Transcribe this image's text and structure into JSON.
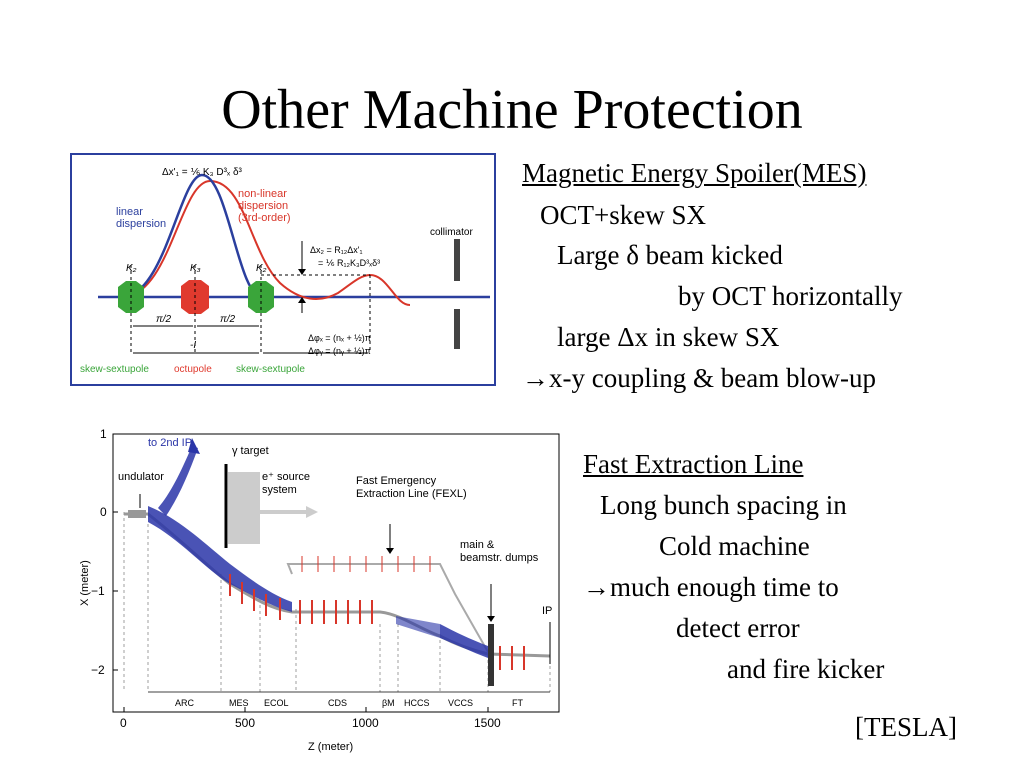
{
  "title": "Other Machine Protection",
  "mes": {
    "heading": "Magnetic Energy Spoiler(MES)",
    "lines": [
      "OCT+skew SX",
      "Large δ beam kicked",
      "by OCT horizontally",
      "large Δx in skew SX",
      "→x-y coupling & beam blow-up"
    ]
  },
  "fel": {
    "heading": "Fast Extraction Line",
    "lines": [
      "Long bunch spacing in",
      "Cold machine",
      "→much enough time to",
      "detect error",
      "and fire kicker"
    ]
  },
  "credit": "[TESLA]",
  "fig1": {
    "eq_top": "Δx'₁ = ⅙ K₃ D³ₓ δ³",
    "linear_l1": "linear",
    "linear_l2": "dispersion",
    "nonlin_l1": "non-linear",
    "nonlin_l2": "dispersion",
    "nonlin_l3": "(3rd-order)",
    "collimator": "collimator",
    "eq_mid1": "Δx₂ = R₁₂Δx'₁",
    "eq_mid2": "= ⅙ R₁₂K₃D³ₓδ³",
    "k2a": "K₂",
    "k3": "K₃",
    "k2b": "K₂",
    "pi2a": "π/2",
    "pi2b": "π/2",
    "minus_i": "-I",
    "phase_x": "Δφₓ = (nₓ + ½)π",
    "phase_y": "Δφᵧ = (nᵧ + ½)π",
    "label_sx1": "skew-sextupole",
    "label_oct": "octupole",
    "label_sx2": "skew-sextupole",
    "colors": {
      "linear": "#2b3f9e",
      "nonlinear": "#d8362a",
      "sextupole": "#3aa53a",
      "octupole": "#e03a2e",
      "frame": "#2b3f9e"
    }
  },
  "fig2": {
    "ylabel": "X (meter)",
    "xlabel": "Z (meter)",
    "yticks": [
      "1",
      "0",
      "−1",
      "−2"
    ],
    "xticks": [
      "0",
      "500",
      "1000",
      "1500"
    ],
    "ann_ip2": "to 2nd IP",
    "ann_gamma": "γ target",
    "ann_und": "undulator",
    "ann_esrc1": "e⁺ source",
    "ann_esrc2": "system",
    "ann_fexl1": "Fast Emergency",
    "ann_fexl2": "Extraction Line (FEXL)",
    "ann_dump1": "main &",
    "ann_dump2": "beamstr. dumps",
    "ann_ip": "IP",
    "sections": [
      "ARC",
      "MES",
      "ECOL",
      "CDS",
      "βM",
      "HCCS",
      "VCCS",
      "FT"
    ]
  }
}
